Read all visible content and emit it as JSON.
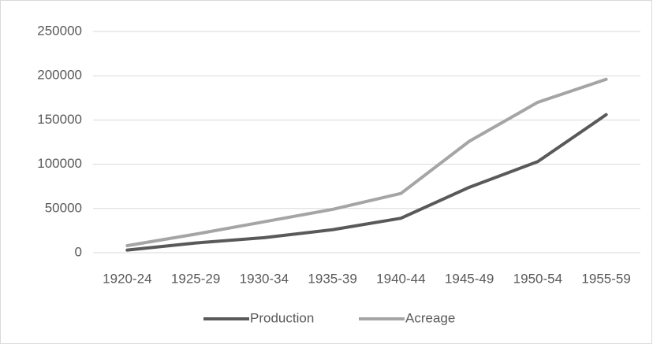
{
  "chart_data": {
    "type": "line",
    "categories": [
      "1920-24",
      "1925-29",
      "1930-34",
      "1935-39",
      "1940-44",
      "1945-49",
      "1950-54",
      "1955-59"
    ],
    "series": [
      {
        "name": "Production",
        "color": "#595959",
        "values": [
          3000,
          11000,
          17000,
          26000,
          39000,
          74000,
          103000,
          156000
        ]
      },
      {
        "name": "Acreage",
        "color": "#a5a5a5",
        "values": [
          8000,
          21000,
          35000,
          49000,
          67000,
          126000,
          170000,
          196000
        ]
      }
    ],
    "ylim": [
      0,
      250000
    ],
    "yticks": [
      0,
      50000,
      100000,
      150000,
      200000,
      250000
    ],
    "grid": true,
    "legend": "bottom"
  }
}
